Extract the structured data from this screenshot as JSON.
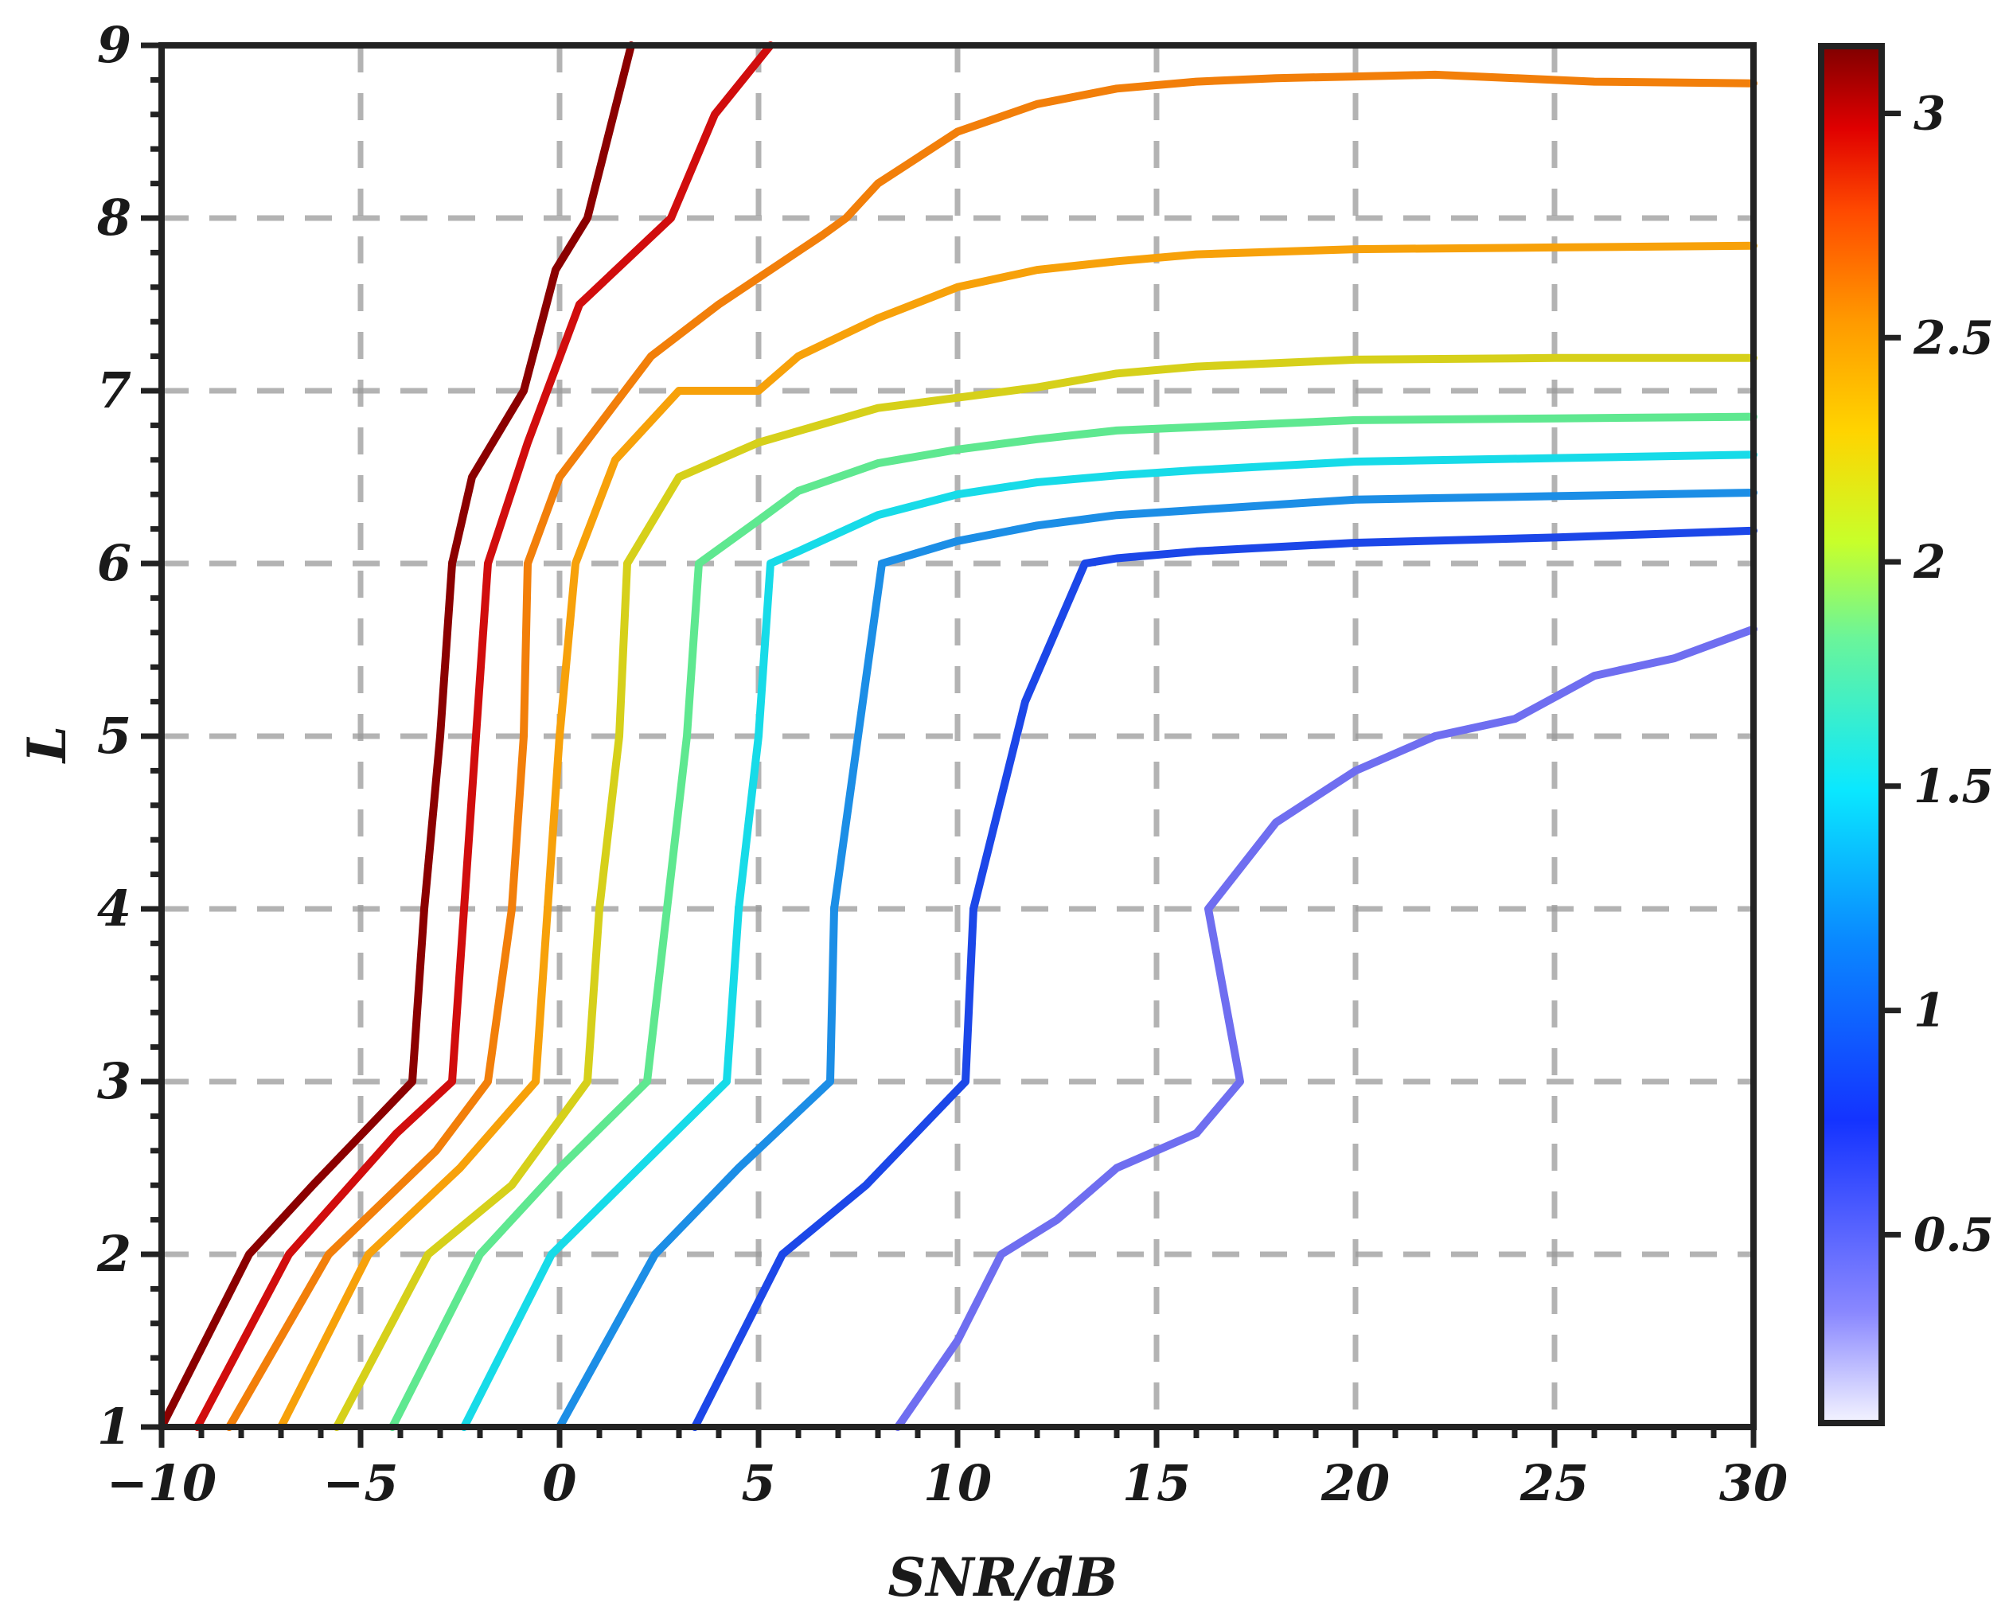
{
  "chart_data": {
    "type": "line",
    "chart_kind": "contour",
    "xlabel": "SNR/dB",
    "ylabel": "L",
    "xlim": [
      -10,
      30
    ],
    "ylim": [
      1,
      9
    ],
    "x_ticks": [
      -10,
      -5,
      0,
      5,
      10,
      15,
      20,
      25,
      30
    ],
    "y_ticks": [
      1,
      2,
      3,
      4,
      5,
      6,
      7,
      8,
      9
    ],
    "grid": "on (dashed gray)",
    "colorbar": {
      "range": [
        0.08,
        3.15
      ],
      "ticks": [
        0.5,
        1,
        1.5,
        2,
        2.5,
        3
      ],
      "tick_labels": [
        "0.5",
        "1",
        "1.5",
        "2",
        "2.5",
        "3"
      ],
      "colormap": "jet"
    },
    "series": [
      {
        "level": 3.1,
        "color": "#8b0000",
        "points": [
          [
            -10,
            1
          ],
          [
            -7.8,
            2
          ],
          [
            -6.2,
            2.4
          ],
          [
            -3.7,
            3
          ],
          [
            -3.4,
            4
          ],
          [
            -3.0,
            5
          ],
          [
            -2.7,
            6
          ],
          [
            -2.2,
            6.5
          ],
          [
            -0.9,
            7
          ],
          [
            -0.1,
            7.7
          ],
          [
            0.7,
            8
          ],
          [
            1.8,
            9
          ]
        ]
      },
      {
        "level": 2.9,
        "color": "#d10d0d",
        "points": [
          [
            -9.1,
            1
          ],
          [
            -6.8,
            2
          ],
          [
            -4.1,
            2.7
          ],
          [
            -2.7,
            3
          ],
          [
            -2.4,
            4
          ],
          [
            -2.1,
            5
          ],
          [
            -1.8,
            6
          ],
          [
            -0.8,
            6.7
          ],
          [
            0.5,
            7.5
          ],
          [
            2.8,
            8
          ],
          [
            3.9,
            8.6
          ],
          [
            5.3,
            9
          ]
        ]
      },
      {
        "level": 2.55,
        "color": "#f27f0a",
        "points": [
          [
            -8.3,
            1
          ],
          [
            -5.8,
            2
          ],
          [
            -3.1,
            2.6
          ],
          [
            -1.8,
            3
          ],
          [
            -1.2,
            4
          ],
          [
            -0.9,
            5
          ],
          [
            -0.8,
            6
          ],
          [
            0,
            6.5
          ],
          [
            2.3,
            7.2
          ],
          [
            4,
            7.5
          ],
          [
            6.6,
            7.9
          ],
          [
            7.2,
            8
          ],
          [
            8.0,
            8.2
          ],
          [
            10,
            8.5
          ],
          [
            12,
            8.66
          ],
          [
            14,
            8.75
          ],
          [
            16,
            8.79
          ],
          [
            18,
            8.81
          ],
          [
            20,
            8.82
          ],
          [
            22,
            8.83
          ],
          [
            24,
            8.81
          ],
          [
            26,
            8.79
          ],
          [
            30,
            8.78
          ]
        ]
      },
      {
        "level": 2.3,
        "color": "#f7a10a",
        "points": [
          [
            -7.0,
            1
          ],
          [
            -4.8,
            2
          ],
          [
            -2.5,
            2.5
          ],
          [
            -0.6,
            3
          ],
          [
            -0.3,
            4
          ],
          [
            0,
            5
          ],
          [
            0.4,
            6
          ],
          [
            1.4,
            6.6
          ],
          [
            3,
            7
          ],
          [
            5,
            7
          ],
          [
            6,
            7.2
          ],
          [
            8,
            7.42
          ],
          [
            10,
            7.6
          ],
          [
            12,
            7.7
          ],
          [
            14,
            7.75
          ],
          [
            16,
            7.79
          ],
          [
            20,
            7.82
          ],
          [
            25,
            7.83
          ],
          [
            30,
            7.84
          ]
        ]
      },
      {
        "level": 1.95,
        "color": "#d6d01a",
        "points": [
          [
            -5.6,
            1
          ],
          [
            -3.3,
            2
          ],
          [
            -1.2,
            2.4
          ],
          [
            0.7,
            3
          ],
          [
            1.0,
            4
          ],
          [
            1.5,
            5
          ],
          [
            1.7,
            6
          ],
          [
            3,
            6.5
          ],
          [
            5,
            6.7
          ],
          [
            8,
            6.9
          ],
          [
            10,
            6.96
          ],
          [
            12,
            7.02
          ],
          [
            14,
            7.1
          ],
          [
            16,
            7.14
          ],
          [
            20,
            7.18
          ],
          [
            25,
            7.19
          ],
          [
            30,
            7.19
          ]
        ]
      },
      {
        "level": 1.65,
        "color": "#5fe890",
        "points": [
          [
            -4.2,
            1
          ],
          [
            -2,
            2
          ],
          [
            0,
            2.5
          ],
          [
            2.2,
            3
          ],
          [
            2.7,
            4
          ],
          [
            3.2,
            5
          ],
          [
            3.5,
            6
          ],
          [
            5,
            6.25
          ],
          [
            6,
            6.42
          ],
          [
            8,
            6.58
          ],
          [
            10,
            6.66
          ],
          [
            12,
            6.72
          ],
          [
            14,
            6.77
          ],
          [
            16,
            6.79
          ],
          [
            20,
            6.83
          ],
          [
            25,
            6.84
          ],
          [
            30,
            6.85
          ]
        ]
      },
      {
        "level": 1.35,
        "color": "#17dbe8",
        "points": [
          [
            -2.4,
            1
          ],
          [
            -0.2,
            2
          ],
          [
            2,
            2.5
          ],
          [
            4.2,
            3
          ],
          [
            4.5,
            4
          ],
          [
            5,
            5
          ],
          [
            5.3,
            6
          ],
          [
            6,
            6.07
          ],
          [
            8,
            6.28
          ],
          [
            10,
            6.4
          ],
          [
            12,
            6.47
          ],
          [
            14,
            6.51
          ],
          [
            16,
            6.54
          ],
          [
            20,
            6.59
          ],
          [
            25,
            6.61
          ],
          [
            30,
            6.63
          ]
        ]
      },
      {
        "level": 1.1,
        "color": "#1c8ee6",
        "points": [
          [
            0,
            1
          ],
          [
            2.4,
            2
          ],
          [
            4.5,
            2.5
          ],
          [
            6.8,
            3
          ],
          [
            6.9,
            4
          ],
          [
            7.5,
            5
          ],
          [
            8.1,
            6
          ],
          [
            10,
            6.13
          ],
          [
            12,
            6.22
          ],
          [
            14,
            6.28
          ],
          [
            16,
            6.31
          ],
          [
            20,
            6.37
          ],
          [
            25,
            6.39
          ],
          [
            30,
            6.41
          ]
        ]
      },
      {
        "level": 0.75,
        "color": "#1c47e8",
        "points": [
          [
            3.4,
            1
          ],
          [
            5.6,
            2
          ],
          [
            7.7,
            2.4
          ],
          [
            10.2,
            3
          ],
          [
            10.4,
            4
          ],
          [
            11.7,
            5.2
          ],
          [
            13.2,
            6
          ],
          [
            14,
            6.03
          ],
          [
            16,
            6.07
          ],
          [
            20,
            6.12
          ],
          [
            25,
            6.15
          ],
          [
            30,
            6.19
          ]
        ]
      },
      {
        "level": 0.4,
        "color": "#6f6ef0",
        "points": [
          [
            8.5,
            1
          ],
          [
            10,
            1.5
          ],
          [
            11.1,
            2
          ],
          [
            12.5,
            2.2
          ],
          [
            14,
            2.5
          ],
          [
            16,
            2.7
          ],
          [
            17.1,
            3
          ],
          [
            16.3,
            4
          ],
          [
            18,
            4.5
          ],
          [
            20,
            4.8
          ],
          [
            22,
            5
          ],
          [
            24,
            5.1
          ],
          [
            26,
            5.35
          ],
          [
            28,
            5.45
          ],
          [
            30,
            5.62
          ]
        ]
      }
    ]
  }
}
